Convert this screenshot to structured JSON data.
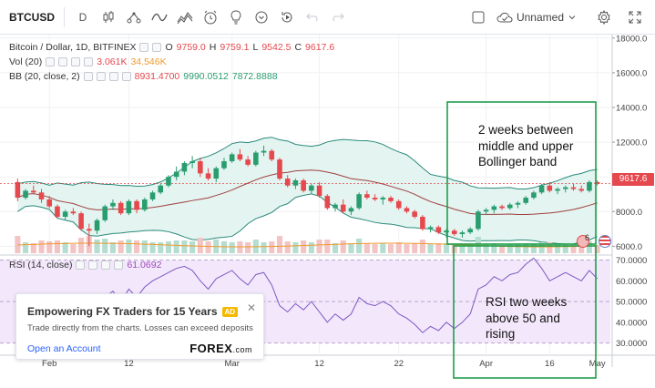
{
  "toolbar": {
    "symbol": "BTCUSD",
    "interval": "D",
    "layout_name": "Unnamed",
    "tools": [
      "candles-icon",
      "compare-icon",
      "indicators-icon",
      "templates-icon",
      "alert-icon",
      "ideas-icon",
      "replay-icon",
      "undo-icon",
      "redo-icon"
    ]
  },
  "legend": {
    "title": "Bitcoin / Dollar, 1D, BITFINEX",
    "o_label": "O",
    "o": "9759.0",
    "h_label": "H",
    "h": "9759.1",
    "l_label": "L",
    "l": "9542.5",
    "c_label": "C",
    "c": "9617.6",
    "vol_label": "Vol (20)",
    "vol_value": "3.061K",
    "vol_ma": "34.546K",
    "bb_label": "BB (20, close, 2)",
    "bb_middle": "8931.4700",
    "bb_upper": "9990.0512",
    "bb_lower": "7872.8888",
    "rsi_label": "RSI (14, close)",
    "rsi_value": "61.0692"
  },
  "price_axis": [
    "18000.0",
    "16000.0",
    "14000.0",
    "12000.0",
    "10000.0",
    "8000.0",
    "6000.0"
  ],
  "rsi_axis": [
    "70.0000",
    "60.0000",
    "50.0000",
    "40.0000",
    "30.0000"
  ],
  "time_axis": [
    "Feb",
    "12",
    "Mar",
    "12",
    "22",
    "Apr",
    "16",
    "May"
  ],
  "last_price": "9617.6",
  "events_badge": "6",
  "ad": {
    "title": "Empowering FX Traders for 15 Years",
    "badge": "AD",
    "text": "Trade directly from the charts. Losses can exceed deposits",
    "link": "Open an Account",
    "logo": "FOREX",
    "logo_suffix": ".com"
  },
  "annotations": {
    "bb_note": [
      "2 weeks between",
      "middle and upper",
      "Bollinger band"
    ],
    "rsi_note": [
      "RSI two weeks",
      "above 50 and",
      "rising"
    ]
  },
  "colors": {
    "up": "#2a9d6f",
    "down": "#e5484d",
    "bb_band": "#e0f3ef",
    "bb_line": "#2a8a7a",
    "bb_mid": "#a04040",
    "rsi_line": "#7e57c2",
    "rsi_band": "#f3e8fb",
    "annotation_box": "#1e9e4a"
  },
  "chart_data": {
    "type": "candlestick",
    "timeframe": "1D",
    "candles": [
      [
        9700,
        9900,
        8600,
        8800
      ],
      [
        8800,
        9300,
        8700,
        9200
      ],
      [
        9200,
        9500,
        9000,
        9100
      ],
      [
        9100,
        9300,
        8500,
        8700
      ],
      [
        8700,
        8900,
        8200,
        8300
      ],
      [
        8300,
        8400,
        7600,
        7700
      ],
      [
        7700,
        8100,
        7500,
        8000
      ],
      [
        8000,
        8200,
        7800,
        7900
      ],
      [
        7900,
        8000,
        6900,
        7000
      ],
      [
        7000,
        7300,
        6000,
        6900
      ],
      [
        6900,
        7600,
        6700,
        7500
      ],
      [
        7500,
        8400,
        7400,
        8300
      ],
      [
        8300,
        8700,
        8100,
        8500
      ],
      [
        8500,
        8600,
        7800,
        7900
      ],
      [
        7900,
        8700,
        7800,
        8600
      ],
      [
        8600,
        8700,
        7900,
        8100
      ],
      [
        8100,
        8800,
        8000,
        8700
      ],
      [
        8700,
        9200,
        8600,
        9100
      ],
      [
        9100,
        9600,
        9000,
        9500
      ],
      [
        9500,
        10100,
        9400,
        10000
      ],
      [
        10000,
        10600,
        9800,
        10300
      ],
      [
        10300,
        10900,
        10100,
        10800
      ],
      [
        10800,
        11200,
        10500,
        10900
      ],
      [
        10900,
        11100,
        10000,
        10200
      ],
      [
        10200,
        10500,
        9800,
        9900
      ],
      [
        9900,
        10600,
        9700,
        10500
      ],
      [
        10500,
        11100,
        10400,
        10900
      ],
      [
        10900,
        11400,
        10800,
        11300
      ],
      [
        11300,
        11600,
        10900,
        11000
      ],
      [
        11000,
        11200,
        10600,
        10700
      ],
      [
        10700,
        11500,
        10600,
        11400
      ],
      [
        11400,
        11800,
        11200,
        11500
      ],
      [
        11500,
        11600,
        10900,
        11000
      ],
      [
        11000,
        11100,
        9800,
        9900
      ],
      [
        9900,
        10100,
        9400,
        9500
      ],
      [
        9500,
        9900,
        9300,
        9800
      ],
      [
        9800,
        9900,
        9100,
        9200
      ],
      [
        9200,
        9600,
        9000,
        9500
      ],
      [
        9500,
        9700,
        8800,
        8900
      ],
      [
        8900,
        9000,
        8100,
        8200
      ],
      [
        8200,
        8500,
        8000,
        8400
      ],
      [
        8400,
        8700,
        7900,
        8000
      ],
      [
        8000,
        8300,
        7800,
        8200
      ],
      [
        8200,
        9100,
        8100,
        9000
      ],
      [
        9000,
        9200,
        8700,
        8800
      ],
      [
        8800,
        9000,
        8600,
        8700
      ],
      [
        8700,
        8900,
        8400,
        8800
      ],
      [
        8800,
        8900,
        8500,
        8600
      ],
      [
        8600,
        8700,
        8100,
        8200
      ],
      [
        8200,
        8300,
        7900,
        8000
      ],
      [
        8000,
        8100,
        7600,
        7700
      ],
      [
        7700,
        7800,
        6900,
        7000
      ],
      [
        7000,
        7200,
        6800,
        7100
      ],
      [
        7100,
        7200,
        6700,
        6800
      ],
      [
        6800,
        7000,
        6500,
        6900
      ],
      [
        6900,
        7000,
        6600,
        6700
      ],
      [
        6700,
        6900,
        6500,
        6800
      ],
      [
        6800,
        7100,
        6700,
        7000
      ],
      [
        7000,
        8100,
        6900,
        8000
      ],
      [
        8000,
        8200,
        7800,
        8100
      ],
      [
        8100,
        8400,
        7900,
        8300
      ],
      [
        8300,
        8400,
        8100,
        8200
      ],
      [
        8200,
        8500,
        8100,
        8400
      ],
      [
        8400,
        8600,
        8200,
        8500
      ],
      [
        8500,
        8900,
        8400,
        8800
      ],
      [
        8800,
        9200,
        8700,
        9100
      ],
      [
        9100,
        9600,
        9000,
        9500
      ],
      [
        9500,
        9700,
        9100,
        9200
      ],
      [
        9200,
        9400,
        9000,
        9300
      ],
      [
        9300,
        9500,
        9100,
        9400
      ],
      [
        9400,
        9600,
        9200,
        9300
      ],
      [
        9300,
        9500,
        9100,
        9200
      ],
      [
        9200,
        9800,
        9100,
        9700
      ],
      [
        9700,
        9800,
        9500,
        9600
      ]
    ],
    "candle_format": "open, high, low, close",
    "y_range": [
      5600,
      18200
    ],
    "rsi_range": [
      25,
      72
    ],
    "rsi": [
      45,
      50,
      48,
      44,
      40,
      36,
      42,
      40,
      34,
      33,
      44,
      52,
      55,
      50,
      56,
      52,
      57,
      60,
      62,
      64,
      66,
      67,
      65,
      60,
      56,
      61,
      63,
      65,
      61,
      58,
      63,
      64,
      58,
      48,
      45,
      49,
      46,
      50,
      45,
      40,
      44,
      41,
      44,
      52,
      49,
      48,
      50,
      48,
      44,
      42,
      39,
      35,
      38,
      36,
      40,
      37,
      40,
      44,
      56,
      58,
      62,
      60,
      63,
      64,
      68,
      71,
      66,
      60,
      62,
      64,
      62,
      60,
      65,
      61
    ]
  }
}
